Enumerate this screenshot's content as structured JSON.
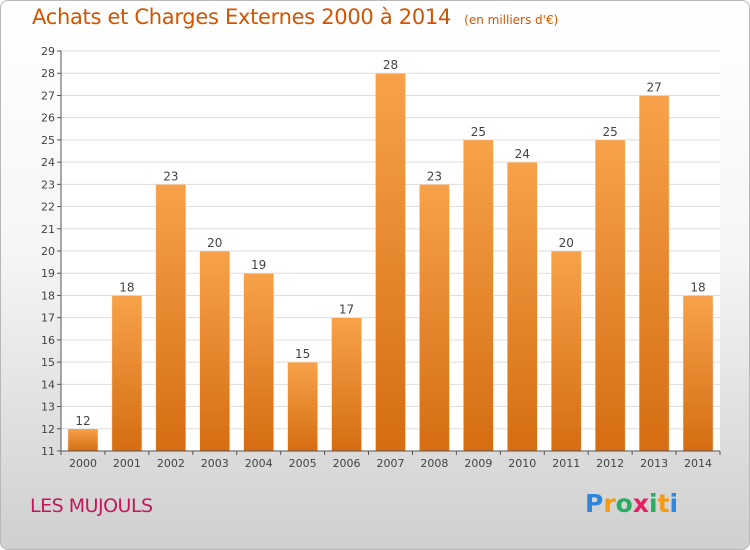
{
  "title": "Achats et Charges Externes 2000 à 2014",
  "subtitle": "(en milliers d'€)",
  "commune": "LES MUJOULS",
  "logo": {
    "text": "Proxiti",
    "letter_colors": [
      "#2e86de",
      "#f39c12",
      "#27ae60",
      "#e91e63",
      "#27ae60",
      "#f39c12",
      "#2e86de"
    ]
  },
  "colors": {
    "bar_top": "#f7a24a",
    "bar_bottom": "#d56d12",
    "title": "#d35400",
    "commune": "#c2185b",
    "grid": "#dddddd",
    "axis": "#555555"
  },
  "chart_data": {
    "type": "bar",
    "categories": [
      "2000",
      "2001",
      "2002",
      "2003",
      "2004",
      "2005",
      "2006",
      "2007",
      "2008",
      "2009",
      "2010",
      "2011",
      "2012",
      "2013",
      "2014"
    ],
    "values": [
      12,
      18,
      23,
      20,
      19,
      15,
      17,
      28,
      23,
      25,
      24,
      20,
      25,
      27,
      18
    ],
    "ylim": [
      11,
      29
    ],
    "yticks": [
      11,
      12,
      13,
      14,
      15,
      16,
      17,
      18,
      19,
      20,
      21,
      22,
      23,
      24,
      25,
      26,
      27,
      28,
      29
    ],
    "grid": true,
    "data_labels": true
  }
}
